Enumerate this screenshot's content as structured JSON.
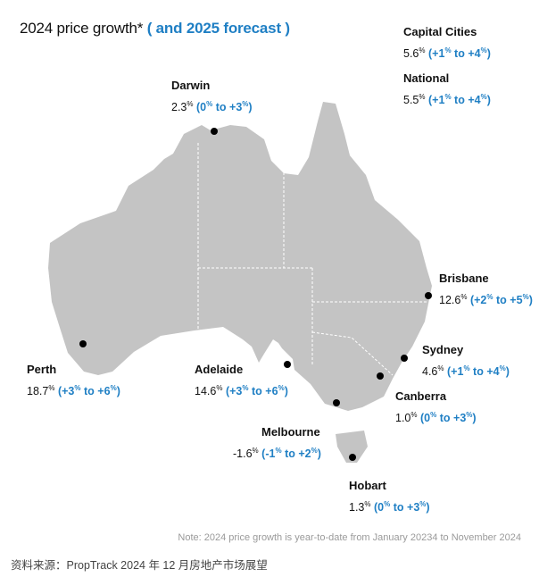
{
  "title": {
    "main": "2024 price growth*",
    "forecast": "( and 2025 forecast )"
  },
  "summary": [
    {
      "name": "Capital Cities",
      "growth": "5.6",
      "forecast_lo": "+1",
      "forecast_hi": "+4"
    },
    {
      "name": "National",
      "growth": "5.5",
      "forecast_lo": "+1",
      "forecast_hi": "+4"
    }
  ],
  "cities": [
    {
      "name": "Darwin",
      "growth": "2.3",
      "forecast_lo": "0",
      "forecast_hi": "+3"
    },
    {
      "name": "Brisbane",
      "growth": "12.6",
      "forecast_lo": "+2",
      "forecast_hi": "+5"
    },
    {
      "name": "Sydney",
      "growth": "4.6",
      "forecast_lo": "+1",
      "forecast_hi": "+4"
    },
    {
      "name": "Canberra",
      "growth": "1.0",
      "forecast_lo": "0",
      "forecast_hi": "+3"
    },
    {
      "name": "Melbourne",
      "growth": "-1.6",
      "forecast_lo": "-1",
      "forecast_hi": "+2"
    },
    {
      "name": "Hobart",
      "growth": "1.3",
      "forecast_lo": "0",
      "forecast_hi": "+3"
    },
    {
      "name": "Adelaide",
      "growth": "14.6",
      "forecast_lo": "+3",
      "forecast_hi": "+6"
    },
    {
      "name": "Perth",
      "growth": "18.7",
      "forecast_lo": "+3",
      "forecast_hi": "+6"
    }
  ],
  "unit": "%",
  "range_word": "to",
  "note": "Note: 2024 price growth is year-to-date from January 20234 to November 2024",
  "source": "资料来源：PropTrack 2024 年 12 月房地产市场展望",
  "colors": {
    "land": "#c4c4c4",
    "accent": "#1f7fc4",
    "border": "#ffffff",
    "dot": "#000000"
  }
}
